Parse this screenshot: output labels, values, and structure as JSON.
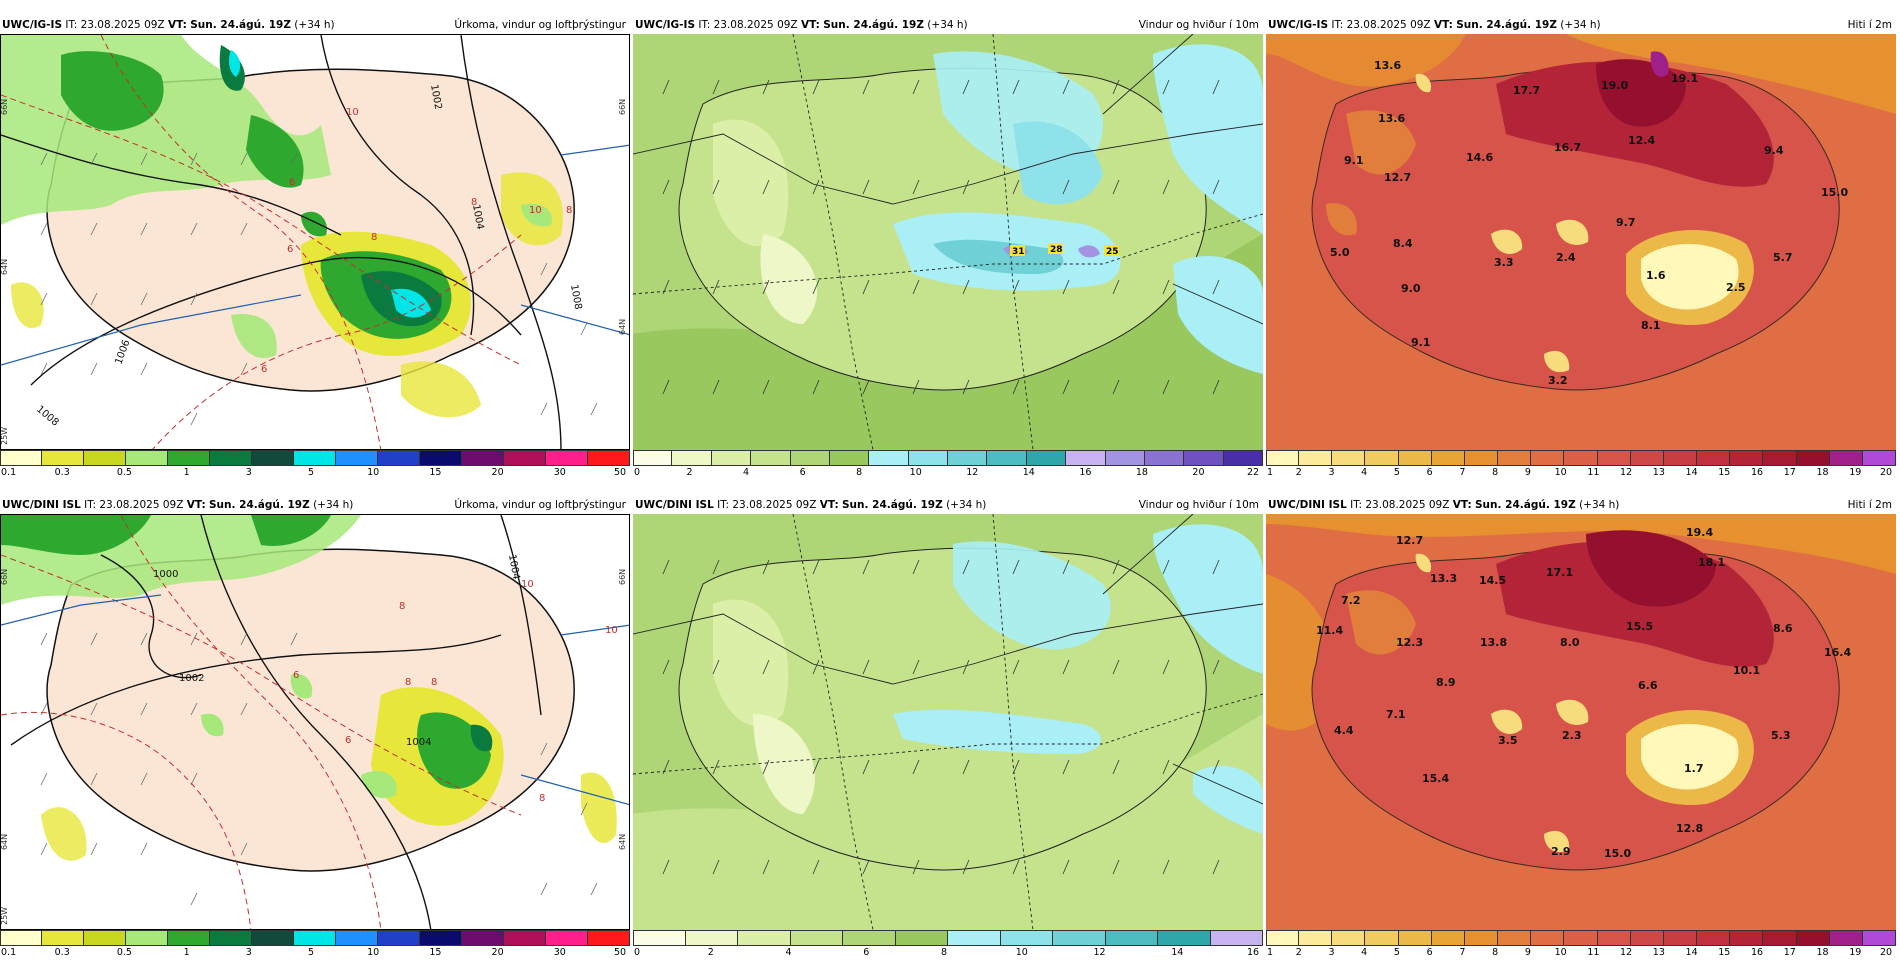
{
  "panels": [
    {
      "id": "p1",
      "model": "UWC/IG-IS",
      "it_label": "IT:",
      "it_value": "23.08.2025 09Z",
      "vt_label": "VT:",
      "vt_value": "Sun. 24.ágú. 19Z",
      "lead": "(+34 h)",
      "field_title": "Úrkoma, vindur og loftþrýstingur",
      "colorbar": {
        "colors": [
          "#ffffcc",
          "#e7e63b",
          "#c7d81f",
          "#a6e87a",
          "#2fa82f",
          "#0b7a3e",
          "#114a3c",
          "#00e6e6",
          "#1e90ff",
          "#2040c8",
          "#0b0b6e",
          "#6e0b6e",
          "#b0105a",
          "#ff1f8c",
          "#ff1a1a"
        ],
        "ticks": [
          "0.1",
          "0.3",
          "0.5",
          "1",
          "3",
          "5",
          "10",
          "15",
          "20",
          "30",
          "50"
        ]
      },
      "labels": {
        "isobars": [
          "1002",
          "1004",
          "1006",
          "1008",
          "1008"
        ],
        "temps": [
          "10",
          "8",
          "8",
          "6",
          "6",
          "6",
          "10",
          "8"
        ],
        "lat_left": [
          "66N",
          "64N",
          "25W"
        ],
        "lat_right": [
          "66N",
          "64N"
        ]
      }
    },
    {
      "id": "p2",
      "model": "UWC/IG-IS",
      "it_label": "IT:",
      "it_value": "23.08.2025 09Z",
      "vt_label": "VT:",
      "vt_value": "Sun. 24.ágú. 19Z",
      "lead": "(+34 h)",
      "field_title": "Vindur og hviður í 10m",
      "colorbar": {
        "colors": [
          "#fbfde8",
          "#eef7c8",
          "#dcefa8",
          "#c4e38c",
          "#aed676",
          "#98c85e",
          "#aaeef6",
          "#8fe2ea",
          "#6fd1d6",
          "#4dbcc0",
          "#2fa6aa",
          "#c6b3f0",
          "#a493e0",
          "#8a72d0",
          "#6e52c0",
          "#4a2ea8"
        ],
        "ticks": [
          "0",
          "2",
          "4",
          "6",
          "8",
          "10",
          "12",
          "14",
          "16",
          "18",
          "20",
          "22"
        ]
      },
      "gust_labels": [
        "31",
        "28",
        "25"
      ]
    },
    {
      "id": "p3",
      "model": "UWC/IG-IS",
      "it_label": "IT:",
      "it_value": "23.08.2025 09Z",
      "vt_label": "VT:",
      "vt_value": "Sun. 24.ágú. 19Z",
      "lead": "(+34 h)",
      "field_title": "Hiti í 2m",
      "colorbar": {
        "colors": [
          "#fff8b8",
          "#fbeb9a",
          "#f6dc7c",
          "#f1cb60",
          "#ecb848",
          "#e9a436",
          "#e69030",
          "#e27e3c",
          "#df6e44",
          "#dc6048",
          "#d6544a",
          "#cf4848",
          "#c83c44",
          "#c0303e",
          "#b32438",
          "#a61a34",
          "#95102e",
          "#a0208a",
          "#b04ad6"
        ],
        "ticks": [
          "1",
          "2",
          "3",
          "4",
          "5",
          "6",
          "7",
          "8",
          "9",
          "10",
          "11",
          "12",
          "13",
          "14",
          "15",
          "16",
          "17",
          "18",
          "19",
          "20"
        ]
      },
      "temp_labels": [
        "13.6",
        "13.6",
        "17.7",
        "19.0",
        "19.1",
        "9.1",
        "12.7",
        "14.6",
        "16.7",
        "12.4",
        "9.4",
        "15.0",
        "8.4",
        "9.7",
        "5.0",
        "3.3",
        "2.4",
        "5.7",
        "9.0",
        "1.6",
        "2.5",
        "8.1",
        "9.1",
        "3.2"
      ]
    },
    {
      "id": "p4",
      "model": "UWC/DINI ISL",
      "it_label": "IT:",
      "it_value": "23.08.2025 09Z",
      "vt_label": "VT:",
      "vt_value": "Sun. 24.ágú. 19Z",
      "lead": "(+34 h)",
      "field_title": "Úrkoma, vindur og loftþrýstingur",
      "colorbar": {
        "colors": [
          "#ffffcc",
          "#e7e63b",
          "#c7d81f",
          "#a6e87a",
          "#2fa82f",
          "#0b7a3e",
          "#114a3c",
          "#00e6e6",
          "#1e90ff",
          "#2040c8",
          "#0b0b6e",
          "#6e0b6e",
          "#b0105a",
          "#ff1f8c",
          "#ff1a1a"
        ],
        "ticks": [
          "0.1",
          "0.3",
          "0.5",
          "1",
          "3",
          "5",
          "10",
          "15",
          "20",
          "30",
          "50"
        ]
      },
      "labels": {
        "isobars": [
          "1000",
          "1002",
          "1004",
          "1004"
        ],
        "temps": [
          "10",
          "8",
          "8",
          "6",
          "6",
          "10",
          "8",
          "8"
        ],
        "lat_left": [
          "66N",
          "64N",
          "25W"
        ],
        "lat_right": [
          "66N",
          "64N"
        ]
      }
    },
    {
      "id": "p5",
      "model": "UWC/DINI ISL",
      "it_label": "IT:",
      "it_value": "23.08.2025 09Z",
      "vt_label": "VT:",
      "vt_value": "Sun. 24.ágú. 19Z",
      "lead": "(+34 h)",
      "field_title": "Vindur og hviður í 10m",
      "colorbar": {
        "colors": [
          "#fbfde8",
          "#eef7c8",
          "#dcefa8",
          "#c4e38c",
          "#aed676",
          "#98c85e",
          "#aaeef6",
          "#8fe2ea",
          "#6fd1d6",
          "#4dbcc0",
          "#2fa6aa",
          "#c6b3f0"
        ],
        "ticks": [
          "0",
          "2",
          "4",
          "6",
          "8",
          "10",
          "12",
          "14",
          "16"
        ]
      }
    },
    {
      "id": "p6",
      "model": "UWC/DINI ISL",
      "it_label": "IT:",
      "it_value": "23.08.2025 09Z",
      "vt_label": "VT:",
      "vt_value": "Sun. 24.ágú. 19Z",
      "lead": "(+34 h)",
      "field_title": "Hiti í 2m",
      "colorbar": {
        "colors": [
          "#fff8b8",
          "#fbeb9a",
          "#f6dc7c",
          "#f1cb60",
          "#ecb848",
          "#e9a436",
          "#e69030",
          "#e27e3c",
          "#df6e44",
          "#dc6048",
          "#d6544a",
          "#cf4848",
          "#c83c44",
          "#c0303e",
          "#b32438",
          "#a61a34",
          "#95102e",
          "#a0208a",
          "#b04ad6"
        ],
        "ticks": [
          "1",
          "2",
          "3",
          "4",
          "5",
          "6",
          "7",
          "8",
          "9",
          "10",
          "11",
          "12",
          "13",
          "14",
          "15",
          "16",
          "17",
          "18",
          "19",
          "20"
        ]
      },
      "temp_labels": [
        "12.7",
        "13.3",
        "17.1",
        "19.4",
        "18.1",
        "7.2",
        "14.5",
        "11.4",
        "15.5",
        "8.6",
        "12.3",
        "13.8",
        "8.0",
        "16.4",
        "10.1",
        "8.9",
        "6.6",
        "7.1",
        "4.4",
        "3.5",
        "2.3",
        "5.3",
        "1.7",
        "15.4",
        "12.8",
        "2.9",
        "15.0"
      ]
    }
  ]
}
